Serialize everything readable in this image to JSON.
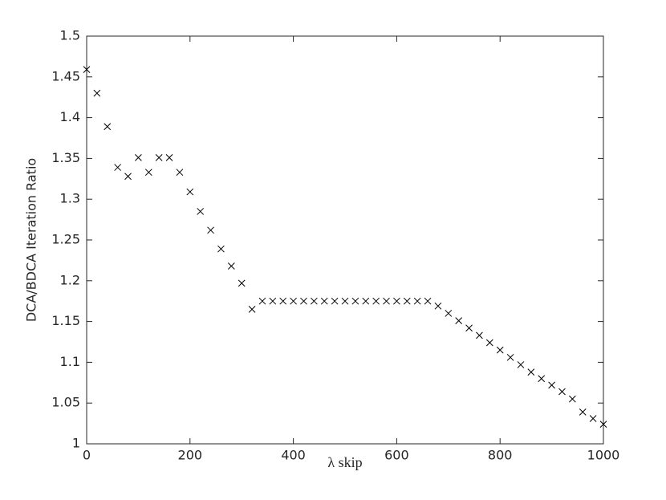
{
  "chart_data": {
    "type": "scatter",
    "xlabel": "λ skip",
    "ylabel": "DCA/BDCA Iteration Ratio",
    "marker": "x",
    "color": "#000000",
    "x": [
      0,
      20,
      40,
      60,
      80,
      100,
      120,
      140,
      160,
      180,
      200,
      220,
      240,
      260,
      280,
      300,
      320,
      340,
      360,
      380,
      400,
      420,
      440,
      460,
      480,
      500,
      520,
      540,
      560,
      580,
      600,
      620,
      640,
      660,
      680,
      700,
      720,
      740,
      760,
      780,
      800,
      820,
      840,
      860,
      880,
      900,
      920,
      940,
      960,
      980,
      1000
    ],
    "values": [
      1.459,
      1.43,
      1.389,
      1.339,
      1.328,
      1.351,
      1.333,
      1.351,
      1.351,
      1.333,
      1.309,
      1.285,
      1.262,
      1.239,
      1.218,
      1.197,
      1.165,
      1.175,
      1.175,
      1.175,
      1.175,
      1.175,
      1.175,
      1.175,
      1.175,
      1.175,
      1.175,
      1.175,
      1.175,
      1.175,
      1.175,
      1.175,
      1.175,
      1.175,
      1.169,
      1.16,
      1.151,
      1.142,
      1.133,
      1.124,
      1.115,
      1.106,
      1.097,
      1.088,
      1.08,
      1.072,
      1.064,
      1.055,
      1.039,
      1.031,
      1.024
    ],
    "xlim": [
      0,
      1000
    ],
    "ylim": [
      1,
      1.5
    ],
    "xticks": [
      0,
      200,
      400,
      600,
      800,
      1000
    ],
    "yticks": [
      1,
      1.05,
      1.1,
      1.15,
      1.2,
      1.25,
      1.3,
      1.35,
      1.4,
      1.45,
      1.5
    ]
  }
}
